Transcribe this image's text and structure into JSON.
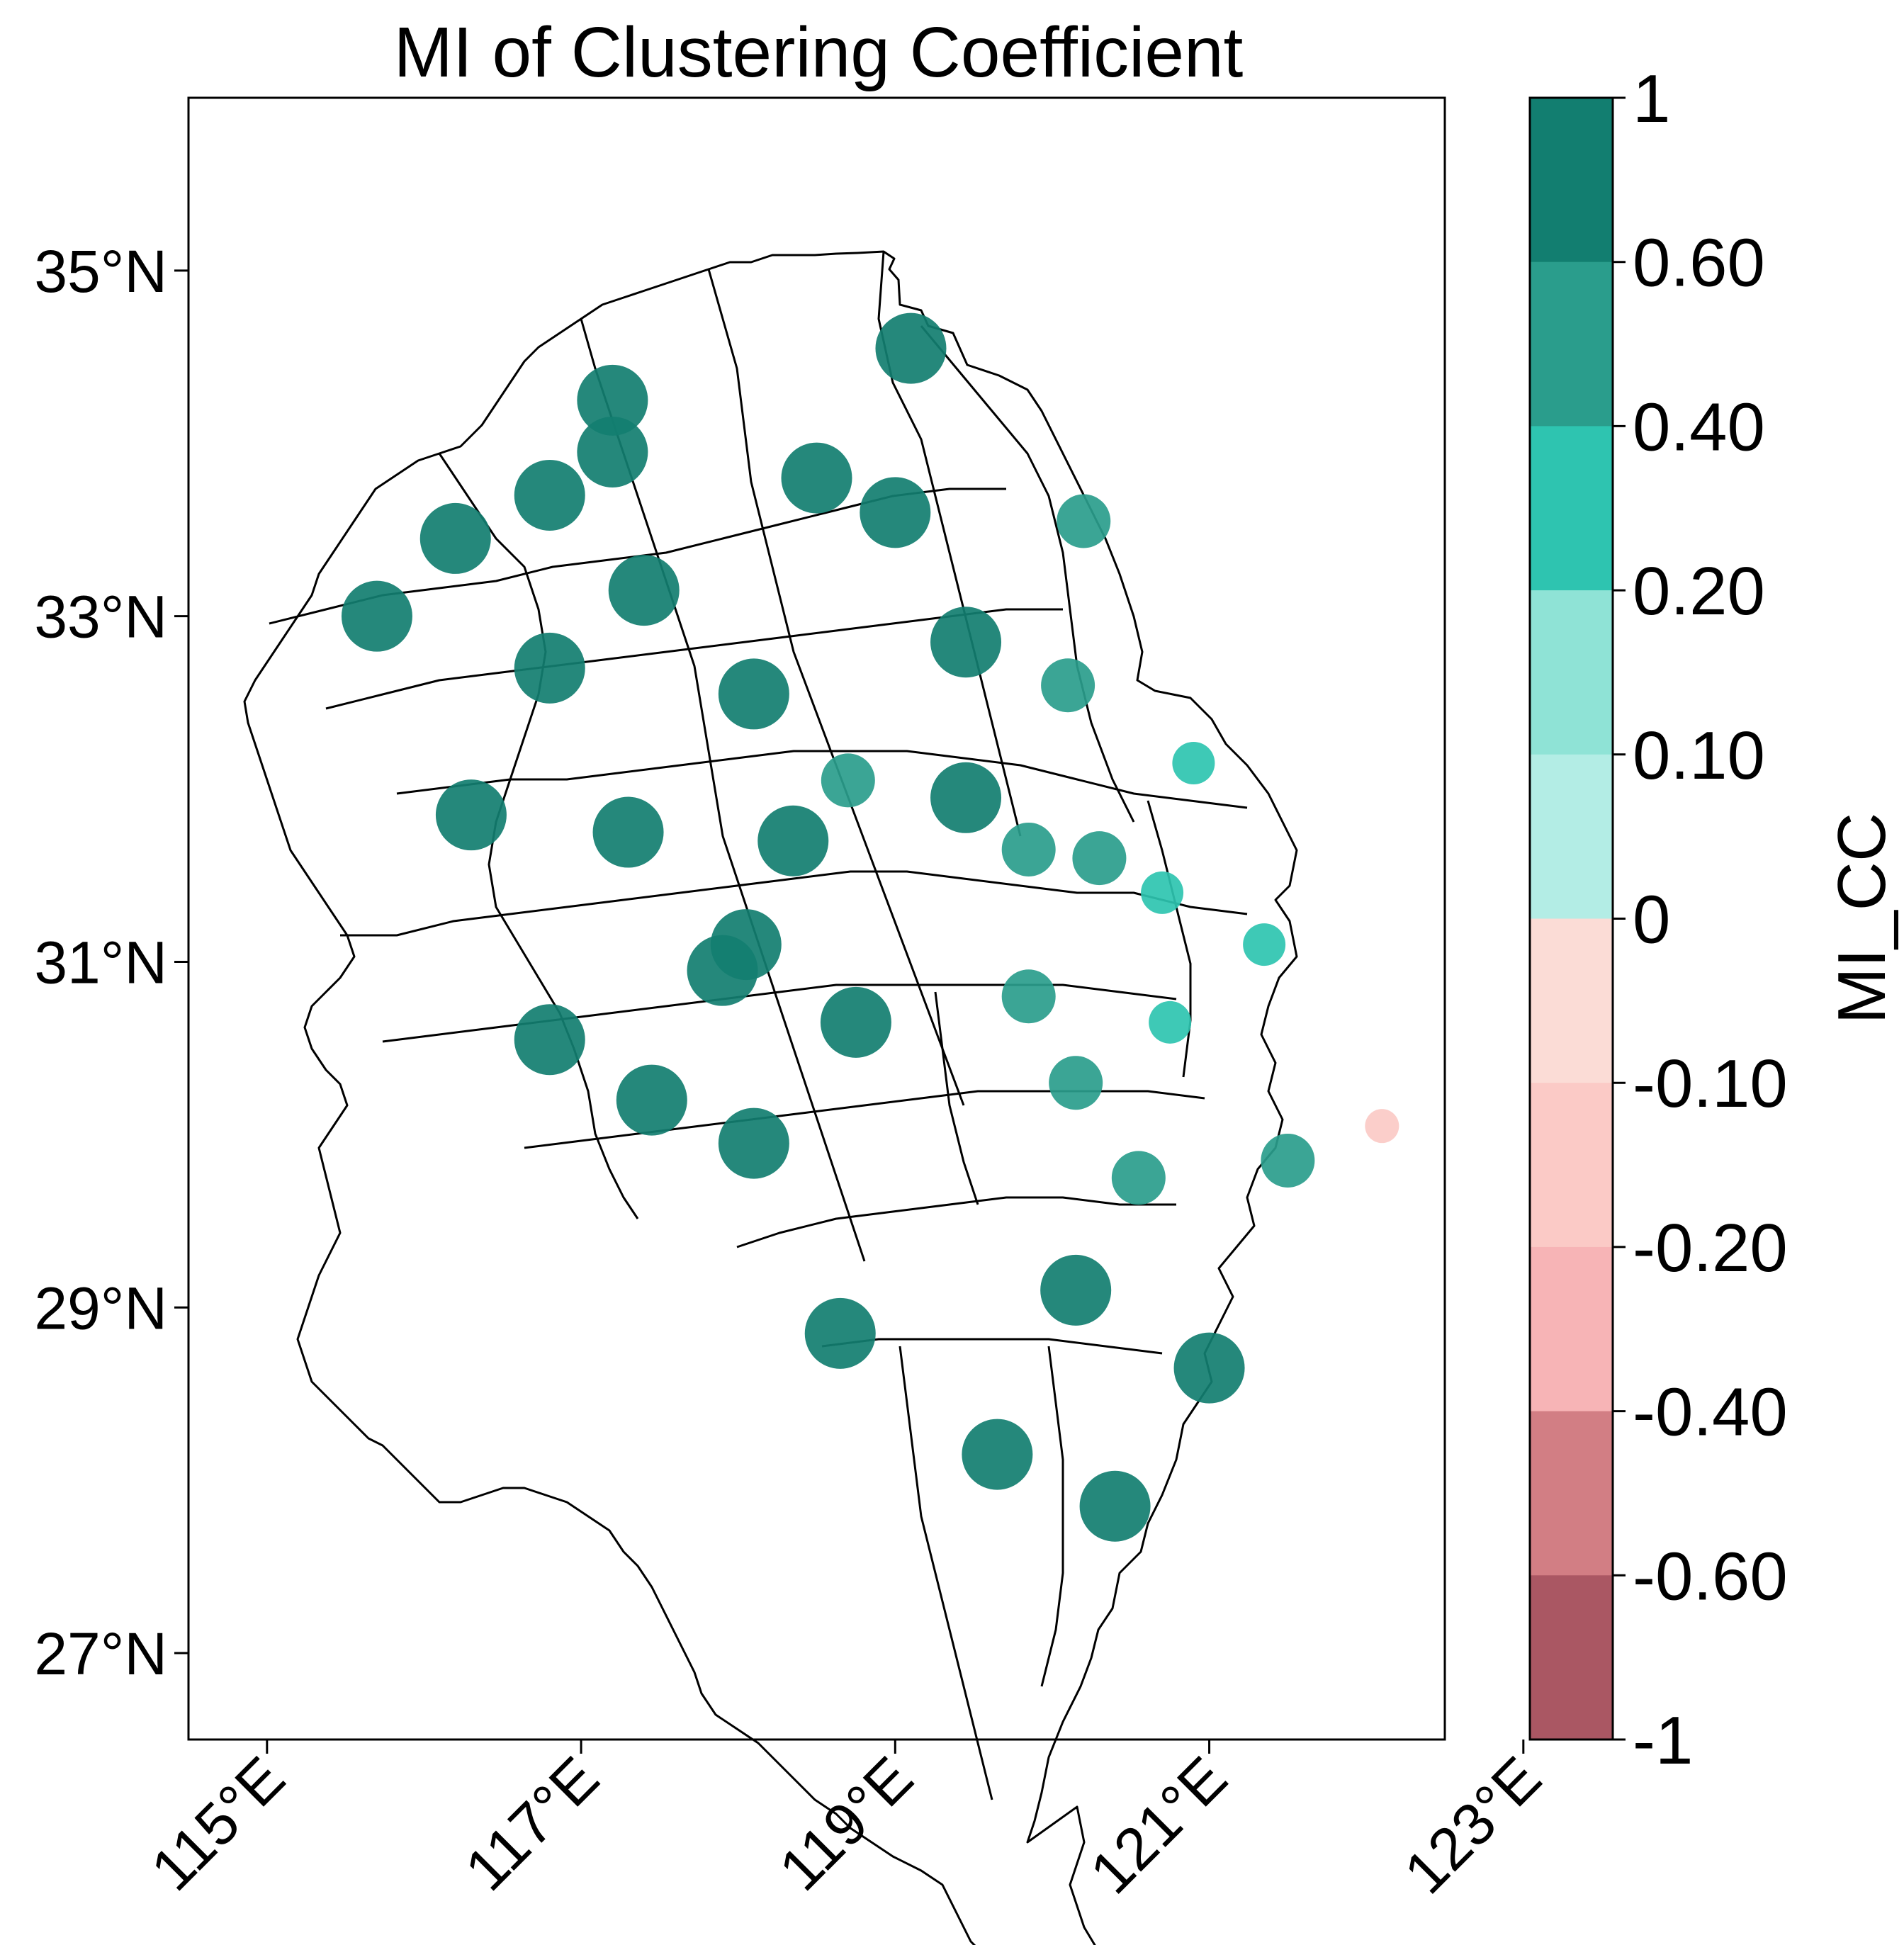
{
  "title": "MI of Clustering Coefficient",
  "colorbar": {
    "label": "MI_CC",
    "tick_labels": [
      "1",
      "0.60",
      "0.40",
      "0.20",
      "0.10",
      "0",
      "-0.10",
      "-0.20",
      "-0.40",
      "-0.60",
      "-1"
    ],
    "bins": [
      {
        "min": 0.6,
        "max": 1.0,
        "color": "#127e70"
      },
      {
        "min": 0.4,
        "max": 0.6,
        "color": "#2a9d8c"
      },
      {
        "min": 0.2,
        "max": 0.4,
        "color": "#2ec4b0"
      },
      {
        "min": 0.1,
        "max": 0.2,
        "color": "#8fe3d6"
      },
      {
        "min": 0.0,
        "max": 0.1,
        "color": "#b3ede5"
      },
      {
        "min": -0.1,
        "max": 0.0,
        "color": "#fbdcd6"
      },
      {
        "min": -0.2,
        "max": -0.1,
        "color": "#fbcac6"
      },
      {
        "min": -0.4,
        "max": -0.2,
        "color": "#f7b4b6"
      },
      {
        "min": -0.6,
        "max": -0.4,
        "color": "#d27e84"
      },
      {
        "min": -1.0,
        "max": -0.6,
        "color": "#aa5763"
      }
    ]
  },
  "axes": {
    "x_ticks": [
      {
        "value": 115,
        "label": "115°E"
      },
      {
        "value": 117,
        "label": "117°E"
      },
      {
        "value": 119,
        "label": "119°E"
      },
      {
        "value": 121,
        "label": "121°E"
      },
      {
        "value": 123,
        "label": "123°E"
      }
    ],
    "y_ticks": [
      {
        "value": 35,
        "label": "35°N"
      },
      {
        "value": 33,
        "label": "33°N"
      },
      {
        "value": 31,
        "label": "31°N"
      },
      {
        "value": 29,
        "label": "29°N"
      },
      {
        "value": 27,
        "label": "27°N"
      }
    ],
    "xlim": [
      114.5,
      122.5
    ],
    "ylim": [
      26.5,
      36.0
    ]
  },
  "chart_data": {
    "type": "scatter",
    "title": "MI of Clustering Coefficient",
    "xlabel": "",
    "ylabel": "",
    "colorbar_label": "MI_CC",
    "points": [
      {
        "lon": 119.1,
        "lat": 34.55,
        "mi": 0.8
      },
      {
        "lon": 117.2,
        "lat": 34.25,
        "mi": 0.8
      },
      {
        "lon": 117.2,
        "lat": 33.95,
        "mi": 0.8
      },
      {
        "lon": 116.8,
        "lat": 33.7,
        "mi": 0.8
      },
      {
        "lon": 118.5,
        "lat": 33.8,
        "mi": 0.8
      },
      {
        "lon": 119.0,
        "lat": 33.6,
        "mi": 0.8
      },
      {
        "lon": 120.2,
        "lat": 33.55,
        "mi": 0.5
      },
      {
        "lon": 116.2,
        "lat": 33.45,
        "mi": 0.8
      },
      {
        "lon": 117.4,
        "lat": 33.15,
        "mi": 0.8
      },
      {
        "lon": 115.7,
        "lat": 33.0,
        "mi": 0.8
      },
      {
        "lon": 119.45,
        "lat": 32.85,
        "mi": 0.8
      },
      {
        "lon": 116.8,
        "lat": 32.7,
        "mi": 0.8
      },
      {
        "lon": 118.1,
        "lat": 32.55,
        "mi": 0.8
      },
      {
        "lon": 120.1,
        "lat": 32.6,
        "mi": 0.5
      },
      {
        "lon": 120.9,
        "lat": 32.15,
        "mi": 0.3
      },
      {
        "lon": 118.7,
        "lat": 32.05,
        "mi": 0.5
      },
      {
        "lon": 119.45,
        "lat": 31.95,
        "mi": 0.8
      },
      {
        "lon": 116.3,
        "lat": 31.85,
        "mi": 0.8
      },
      {
        "lon": 117.3,
        "lat": 31.75,
        "mi": 0.8
      },
      {
        "lon": 118.35,
        "lat": 31.7,
        "mi": 0.8
      },
      {
        "lon": 119.85,
        "lat": 31.65,
        "mi": 0.5
      },
      {
        "lon": 120.3,
        "lat": 31.6,
        "mi": 0.5
      },
      {
        "lon": 120.7,
        "lat": 31.4,
        "mi": 0.3
      },
      {
        "lon": 121.35,
        "lat": 31.1,
        "mi": 0.3
      },
      {
        "lon": 118.05,
        "lat": 31.1,
        "mi": 0.8
      },
      {
        "lon": 117.9,
        "lat": 30.95,
        "mi": 0.8
      },
      {
        "lon": 119.85,
        "lat": 30.8,
        "mi": 0.5
      },
      {
        "lon": 116.8,
        "lat": 30.55,
        "mi": 0.8
      },
      {
        "lon": 118.75,
        "lat": 30.65,
        "mi": 0.8
      },
      {
        "lon": 120.75,
        "lat": 30.65,
        "mi": 0.3
      },
      {
        "lon": 120.15,
        "lat": 30.3,
        "mi": 0.5
      },
      {
        "lon": 117.45,
        "lat": 30.2,
        "mi": 0.8
      },
      {
        "lon": 122.1,
        "lat": 30.05,
        "mi": -0.15
      },
      {
        "lon": 118.1,
        "lat": 29.95,
        "mi": 0.8
      },
      {
        "lon": 121.5,
        "lat": 29.85,
        "mi": 0.5
      },
      {
        "lon": 120.55,
        "lat": 29.75,
        "mi": 0.5
      },
      {
        "lon": 120.15,
        "lat": 29.1,
        "mi": 0.8
      },
      {
        "lon": 118.65,
        "lat": 28.85,
        "mi": 0.8
      },
      {
        "lon": 121.0,
        "lat": 28.65,
        "mi": 0.8
      },
      {
        "lon": 119.65,
        "lat": 28.15,
        "mi": 0.8
      },
      {
        "lon": 120.4,
        "lat": 27.85,
        "mi": 0.8
      }
    ]
  }
}
